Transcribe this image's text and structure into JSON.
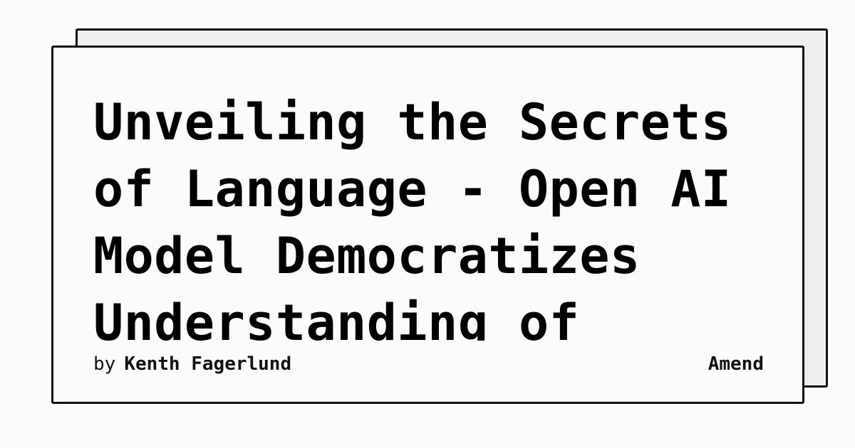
{
  "article": {
    "title": "Unveiling the Secrets of Language - Open AI Model Democratizes Understanding of",
    "byline_prefix": "by",
    "author": "Kenth Fagerlund"
  },
  "brand": {
    "name": "Amend"
  },
  "colors": {
    "background": "#fcfbf9",
    "back_card": "#eeeeee",
    "border": "#111111",
    "text": "#000000"
  }
}
